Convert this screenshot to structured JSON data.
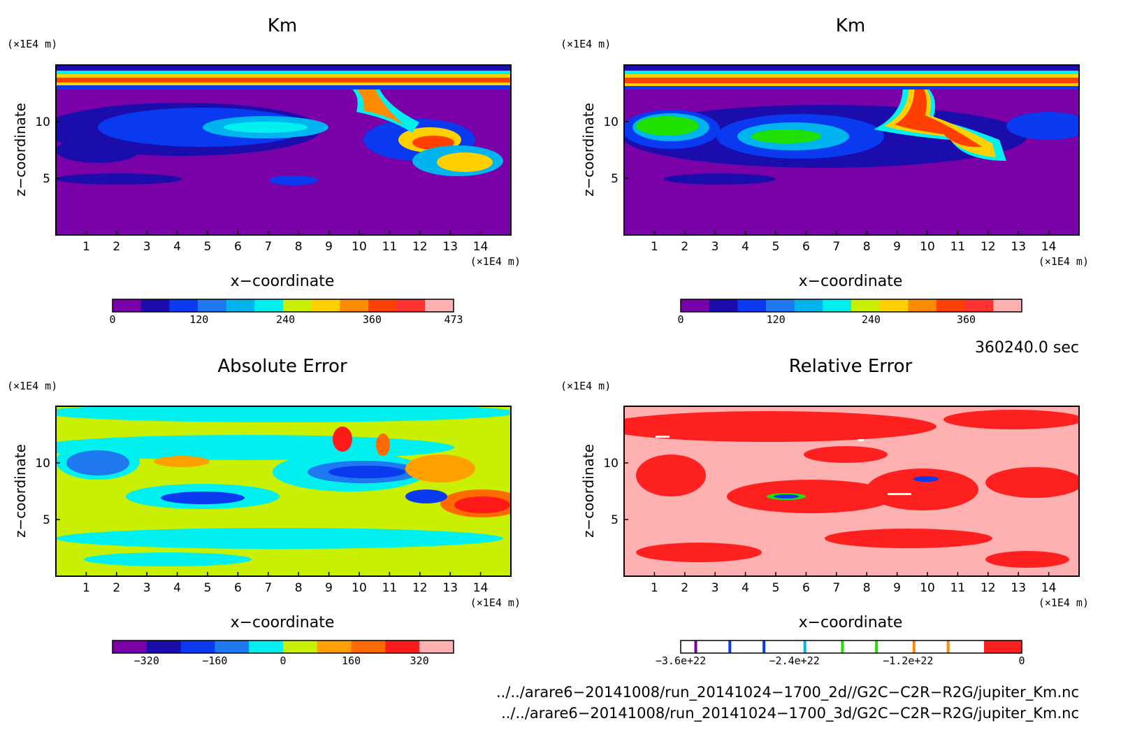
{
  "palette": {
    "km": [
      "#7a00a8",
      "#1a0dab",
      "#0a3af0",
      "#1e78f0",
      "#00b4f0",
      "#00f0f0",
      "#c8f000",
      "#ffd000",
      "#ff8c00",
      "#ff4000",
      "#ff3030",
      "#ffb0b0"
    ],
    "abs": [
      "#7a00a8",
      "#1a0dab",
      "#0a3af0",
      "#1e78f0",
      "#00f0f0",
      "#c8f000",
      "#ffa000",
      "#ff6a00",
      "#ff1a1a",
      "#ffb0b0"
    ],
    "rel": [
      "#ffffff",
      "#ff2020",
      "#ffb0b0"
    ]
  },
  "chart_data": [
    {
      "type": "heatmap",
      "title": "Km",
      "xlabel": "x−coordinate",
      "ylabel": "z−coordinate",
      "x_unit": "(×1E4 m)",
      "z_unit": "(×1E4 m)",
      "xticks": [
        "1",
        "2",
        "3",
        "4",
        "5",
        "6",
        "7",
        "8",
        "9",
        "10",
        "11",
        "12",
        "13",
        "14"
      ],
      "zticks": [
        "5",
        "10"
      ],
      "xlim": [
        0,
        15
      ],
      "zlim": [
        0,
        15
      ],
      "colorbar_ticks": [
        "0",
        "120",
        "240",
        "360",
        "473"
      ],
      "colorbar_range": [
        0,
        473
      ],
      "features": [
        {
          "kind": "band",
          "z": 13.5,
          "value": 400
        },
        {
          "kind": "blob",
          "x": 5.5,
          "z": 9.5,
          "value": 100
        },
        {
          "kind": "blob",
          "x": 9.8,
          "z": 11.5,
          "value": 360
        },
        {
          "kind": "blob",
          "x": 12.2,
          "z": 8.5,
          "value": 400
        },
        {
          "kind": "blob",
          "x": 13.3,
          "z": 6.5,
          "value": 280
        }
      ]
    },
    {
      "type": "heatmap",
      "title": "Km",
      "xlabel": "x−coordinate",
      "ylabel": "z−coordinate",
      "x_unit": "(×1E4 m)",
      "z_unit": "(×1E4 m)",
      "xticks": [
        "1",
        "2",
        "3",
        "4",
        "5",
        "6",
        "7",
        "8",
        "9",
        "10",
        "11",
        "12",
        "13",
        "14"
      ],
      "zticks": [
        "5",
        "10"
      ],
      "xlim": [
        0,
        15
      ],
      "zlim": [
        0,
        15
      ],
      "colorbar_ticks": [
        "0",
        "120",
        "240",
        "360"
      ],
      "colorbar_range": [
        0,
        430
      ],
      "time_label": "360240.0 sec",
      "features": [
        {
          "kind": "band",
          "z": 13.2,
          "value": 380
        },
        {
          "kind": "blob",
          "x": 1.5,
          "z": 9.5,
          "value": 200
        },
        {
          "kind": "blob",
          "x": 5.5,
          "z": 8.8,
          "value": 220
        },
        {
          "kind": "blob",
          "x": 10,
          "z": 10,
          "value": 360
        },
        {
          "kind": "blob",
          "x": 12.5,
          "z": 7.5,
          "value": 330
        }
      ]
    },
    {
      "type": "heatmap",
      "title": "Absolute Error",
      "xlabel": "x−coordinate",
      "ylabel": "z−coordinate",
      "x_unit": "(×1E4 m)",
      "z_unit": "(×1E4 m)",
      "xticks": [
        "1",
        "2",
        "3",
        "4",
        "5",
        "6",
        "7",
        "8",
        "9",
        "10",
        "11",
        "12",
        "13",
        "14"
      ],
      "zticks": [
        "5",
        "10"
      ],
      "xlim": [
        0,
        15
      ],
      "zlim": [
        0,
        15
      ],
      "colorbar_ticks": [
        "−320",
        "−160",
        "0",
        "160",
        "320"
      ],
      "colorbar_range": [
        -400,
        400
      ],
      "features": [
        {
          "kind": "blob",
          "x": 1.2,
          "z": 9.5,
          "value": -160
        },
        {
          "kind": "blob",
          "x": 10,
          "z": 9,
          "value": -300
        },
        {
          "kind": "blob",
          "x": 9.3,
          "z": 11.5,
          "value": 300
        },
        {
          "kind": "blob",
          "x": 12.5,
          "z": 8.5,
          "value": 150
        },
        {
          "kind": "blob",
          "x": 13.5,
          "z": 6,
          "value": 320
        },
        {
          "kind": "blob",
          "x": 4.5,
          "z": 7,
          "value": -250
        }
      ]
    },
    {
      "type": "heatmap",
      "title": "Relative Error",
      "xlabel": "x−coordinate",
      "ylabel": "z−coordinate",
      "x_unit": "(×1E4 m)",
      "z_unit": "(×1E4 m)",
      "xticks": [
        "1",
        "2",
        "3",
        "4",
        "5",
        "6",
        "7",
        "8",
        "9",
        "10",
        "11",
        "12",
        "13",
        "14"
      ],
      "zticks": [
        "5",
        "10"
      ],
      "xlim": [
        0,
        15
      ],
      "zlim": [
        0,
        15
      ],
      "colorbar_ticks": [
        "−3.6e+22",
        "−2.4e+22",
        "−1.2e+22",
        "0"
      ],
      "colorbar_range": [
        -3.6e+22,
        0
      ],
      "features": [
        {
          "kind": "patch",
          "x": 5.5,
          "z": 7,
          "value": -1e+22
        },
        {
          "kind": "patch",
          "x": 10,
          "z": 8.5,
          "value": -3e+22
        }
      ]
    }
  ],
  "footer": {
    "file1": "../../arare6−20141008/run_20141024−1700_2d//G2C−C2R−R2G/jupiter_Km.nc",
    "file2": "../../arare6−20141008/run_20141024−1700_3d/G2C−C2R−R2G/jupiter_Km.nc"
  }
}
